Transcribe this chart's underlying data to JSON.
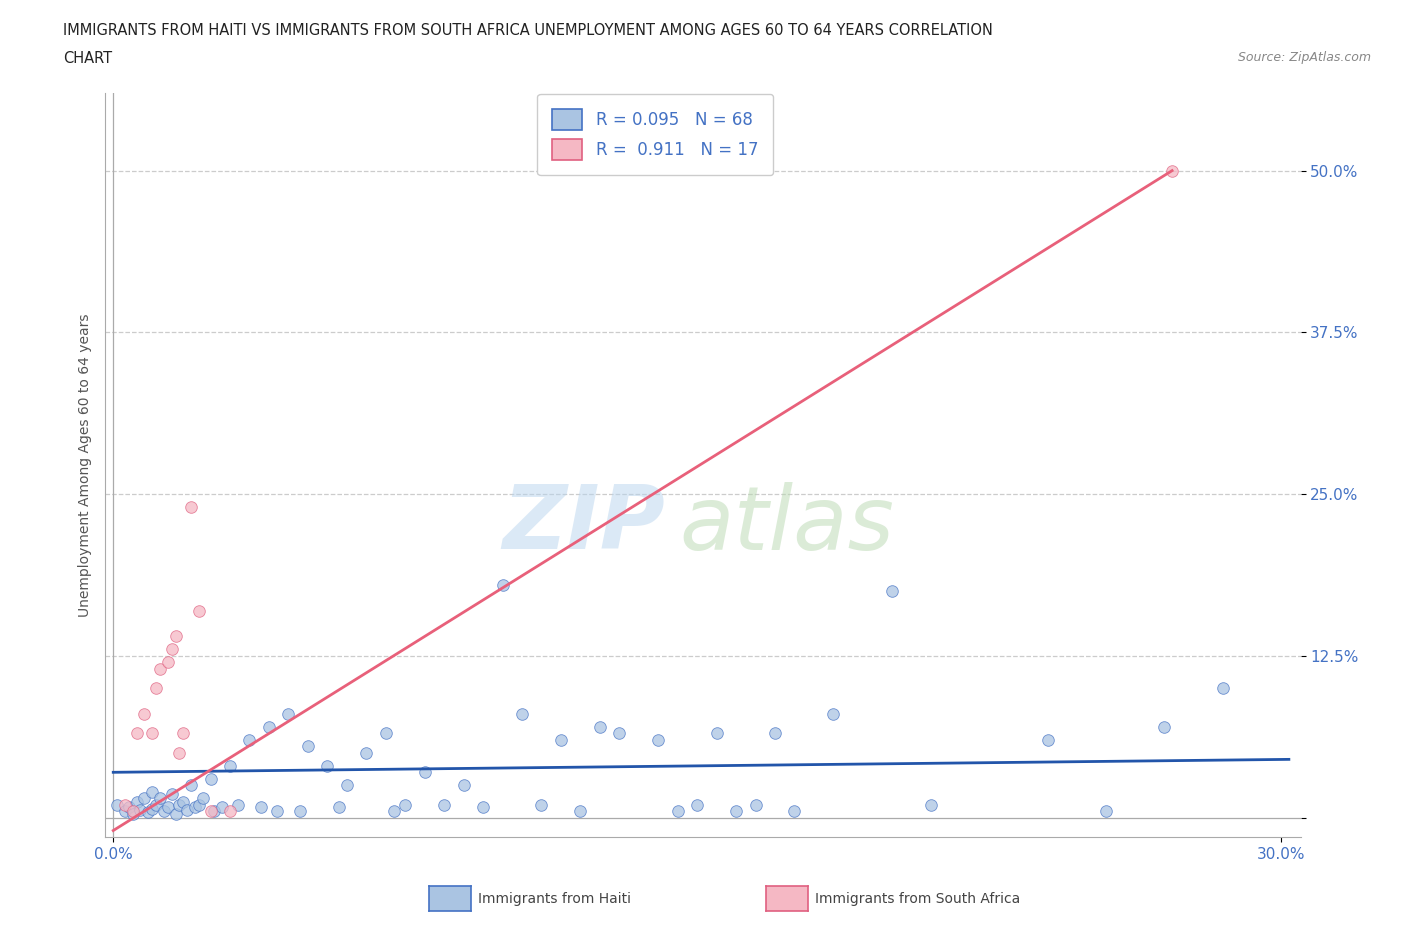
{
  "title_line1": "IMMIGRANTS FROM HAITI VS IMMIGRANTS FROM SOUTH AFRICA UNEMPLOYMENT AMONG AGES 60 TO 64 YEARS CORRELATION",
  "title_line2": "CHART",
  "source": "Source: ZipAtlas.com",
  "ylabel": "Unemployment Among Ages 60 to 64 years",
  "legend_label1": "Immigrants from Haiti",
  "legend_label2": "Immigrants from South Africa",
  "R1": "0.095",
  "N1": "68",
  "R2": "0.911",
  "N2": "17",
  "color_haiti_fill": "#aac4e2",
  "color_haiti_edge": "#4472c4",
  "color_sa_fill": "#f5b8c4",
  "color_sa_edge": "#e06080",
  "color_line_haiti": "#2255aa",
  "color_line_sa": "#e8607a",
  "xlim_min": -0.002,
  "xlim_max": 0.305,
  "ylim_min": -0.015,
  "ylim_max": 0.56,
  "ytick_vals": [
    0.0,
    0.125,
    0.25,
    0.375,
    0.5
  ],
  "ytick_labels": [
    "",
    "12.5%",
    "25.0%",
    "37.5%",
    "50.0%"
  ],
  "xtick_vals": [
    0.0,
    0.3
  ],
  "xtick_labels": [
    "0.0%",
    "30.0%"
  ],
  "grid_color": "#cccccc",
  "tick_color": "#4472c4",
  "spine_color": "#aaaaaa",
  "haiti_x": [
    0.001,
    0.003,
    0.004,
    0.005,
    0.006,
    0.007,
    0.008,
    0.009,
    0.01,
    0.01,
    0.011,
    0.012,
    0.013,
    0.014,
    0.015,
    0.016,
    0.017,
    0.018,
    0.019,
    0.02,
    0.021,
    0.022,
    0.023,
    0.025,
    0.026,
    0.028,
    0.03,
    0.032,
    0.035,
    0.038,
    0.04,
    0.042,
    0.045,
    0.048,
    0.05,
    0.055,
    0.058,
    0.06,
    0.065,
    0.07,
    0.072,
    0.075,
    0.08,
    0.085,
    0.09,
    0.095,
    0.1,
    0.105,
    0.11,
    0.115,
    0.12,
    0.125,
    0.13,
    0.14,
    0.145,
    0.15,
    0.155,
    0.16,
    0.165,
    0.17,
    0.175,
    0.185,
    0.2,
    0.21,
    0.24,
    0.255,
    0.27,
    0.285
  ],
  "haiti_y": [
    0.01,
    0.005,
    0.008,
    0.003,
    0.012,
    0.006,
    0.015,
    0.004,
    0.02,
    0.007,
    0.01,
    0.015,
    0.005,
    0.008,
    0.018,
    0.003,
    0.01,
    0.012,
    0.006,
    0.025,
    0.008,
    0.01,
    0.015,
    0.03,
    0.005,
    0.008,
    0.04,
    0.01,
    0.06,
    0.008,
    0.07,
    0.005,
    0.08,
    0.005,
    0.055,
    0.04,
    0.008,
    0.025,
    0.05,
    0.065,
    0.005,
    0.01,
    0.035,
    0.01,
    0.025,
    0.008,
    0.18,
    0.08,
    0.01,
    0.06,
    0.005,
    0.07,
    0.065,
    0.06,
    0.005,
    0.01,
    0.065,
    0.005,
    0.01,
    0.065,
    0.005,
    0.08,
    0.175,
    0.01,
    0.06,
    0.005,
    0.07,
    0.1
  ],
  "sa_x": [
    0.003,
    0.005,
    0.006,
    0.008,
    0.01,
    0.011,
    0.012,
    0.014,
    0.015,
    0.016,
    0.017,
    0.018,
    0.02,
    0.022,
    0.025,
    0.03,
    0.272
  ],
  "sa_y": [
    0.01,
    0.005,
    0.065,
    0.08,
    0.065,
    0.1,
    0.115,
    0.12,
    0.13,
    0.14,
    0.05,
    0.065,
    0.24,
    0.16,
    0.005,
    0.005,
    0.5
  ],
  "sa_line_x": [
    0.0,
    0.272
  ],
  "sa_line_y": [
    -0.01,
    0.5
  ],
  "haiti_line_x": [
    0.0,
    0.302
  ],
  "haiti_line_y": [
    0.035,
    0.045
  ]
}
